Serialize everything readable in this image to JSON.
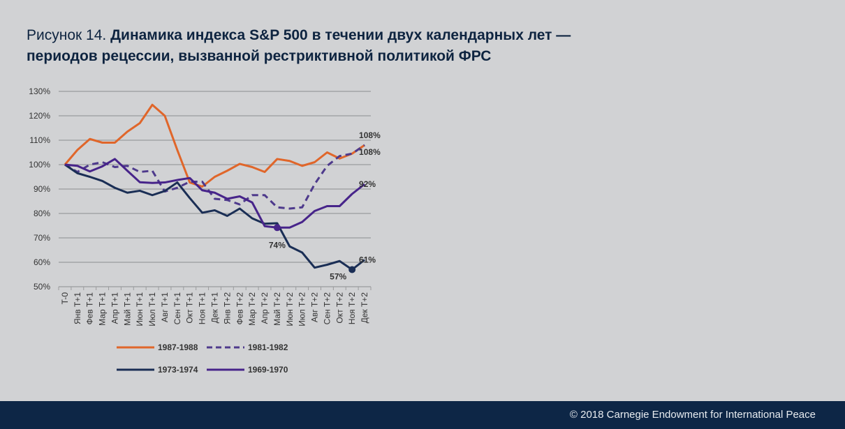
{
  "title": {
    "prefix": "Рисунок 14.",
    "line1": "Динамика индекса S&P 500 в течении двух календарных лет —",
    "line2": "периодов рецессии, вызванной рестриктивной политикой ФРС"
  },
  "footer": {
    "copyright": "© 2018 Carnegie Endowment for International Peace"
  },
  "chart_data": {
    "type": "line",
    "title": "Динамика индекса S&P 500 в течении двух календарных лет — периодов рецессии, вызванной рестриктивной политикой ФРС",
    "xlabel": "",
    "ylabel": "",
    "ylim": [
      50,
      130
    ],
    "yticks": [
      "50%",
      "60%",
      "70%",
      "80%",
      "90%",
      "100%",
      "110%",
      "120%",
      "130%"
    ],
    "grid": true,
    "legend": "bottom",
    "categories": [
      "T-0",
      "Янв T+1",
      "Фев T+1",
      "Мар T+1",
      "Апр T+1",
      "Май T+1",
      "Июн T+1",
      "Июл T+1",
      "Авг T+1",
      "Сен T+1",
      "Окт T+1",
      "Ноя T+1",
      "Дек T+1",
      "Янв T+2",
      "Фев T+2",
      "Мар T+2",
      "Апр T+2",
      "Май T+2",
      "Июн T+2",
      "Июл T+2",
      "Авг T+2",
      "Сен T+2",
      "Окт T+2",
      "Ноя T+2",
      "Дек T+2"
    ],
    "series": [
      {
        "name": "1987-1988",
        "color": "#e0662a",
        "dashed": false,
        "values": [
          100,
          106,
          110.5,
          109,
          109,
          113.5,
          117,
          124.5,
          120,
          106,
          92.7,
          91,
          95,
          97.5,
          100.3,
          99,
          97,
          102.3,
          101.5,
          99.5,
          101,
          105,
          102.5,
          104.5,
          108
        ],
        "end_label": "108%"
      },
      {
        "name": "1981-1982",
        "color": "#4e3a8c",
        "dashed": true,
        "values": [
          100,
          97,
          100,
          101,
          99,
          99.5,
          97,
          97.5,
          89,
          90.5,
          93,
          93,
          86,
          85.5,
          83.7,
          87.5,
          87.5,
          82.5,
          82,
          82.5,
          92,
          99.5,
          103.5,
          104.5,
          108
        ],
        "end_label": "108%"
      },
      {
        "name": "1973-1974",
        "color": "#1a2e55",
        "dashed": false,
        "values": [
          100,
          96.5,
          95,
          93.3,
          90.5,
          88.5,
          89.3,
          87.5,
          89.2,
          92.7,
          86.3,
          80.3,
          81.3,
          79,
          82,
          78,
          75.8,
          76,
          66.5,
          64,
          57.8,
          59,
          60.5,
          57,
          61
        ],
        "end_label": "61%",
        "min_label": "57%",
        "min_index": 23
      },
      {
        "name": "1969-1970",
        "color": "#47248a",
        "dashed": false,
        "values": [
          100,
          99.5,
          97.2,
          99.3,
          102.3,
          97.5,
          92.8,
          92.5,
          92.7,
          93.7,
          94.5,
          89.5,
          88.5,
          86,
          87,
          84.5,
          74.8,
          74.2,
          74.2,
          76.5,
          81,
          83,
          83,
          88,
          92
        ],
        "end_label": "92%",
        "min_label": "74%",
        "min_index": 17
      }
    ]
  }
}
